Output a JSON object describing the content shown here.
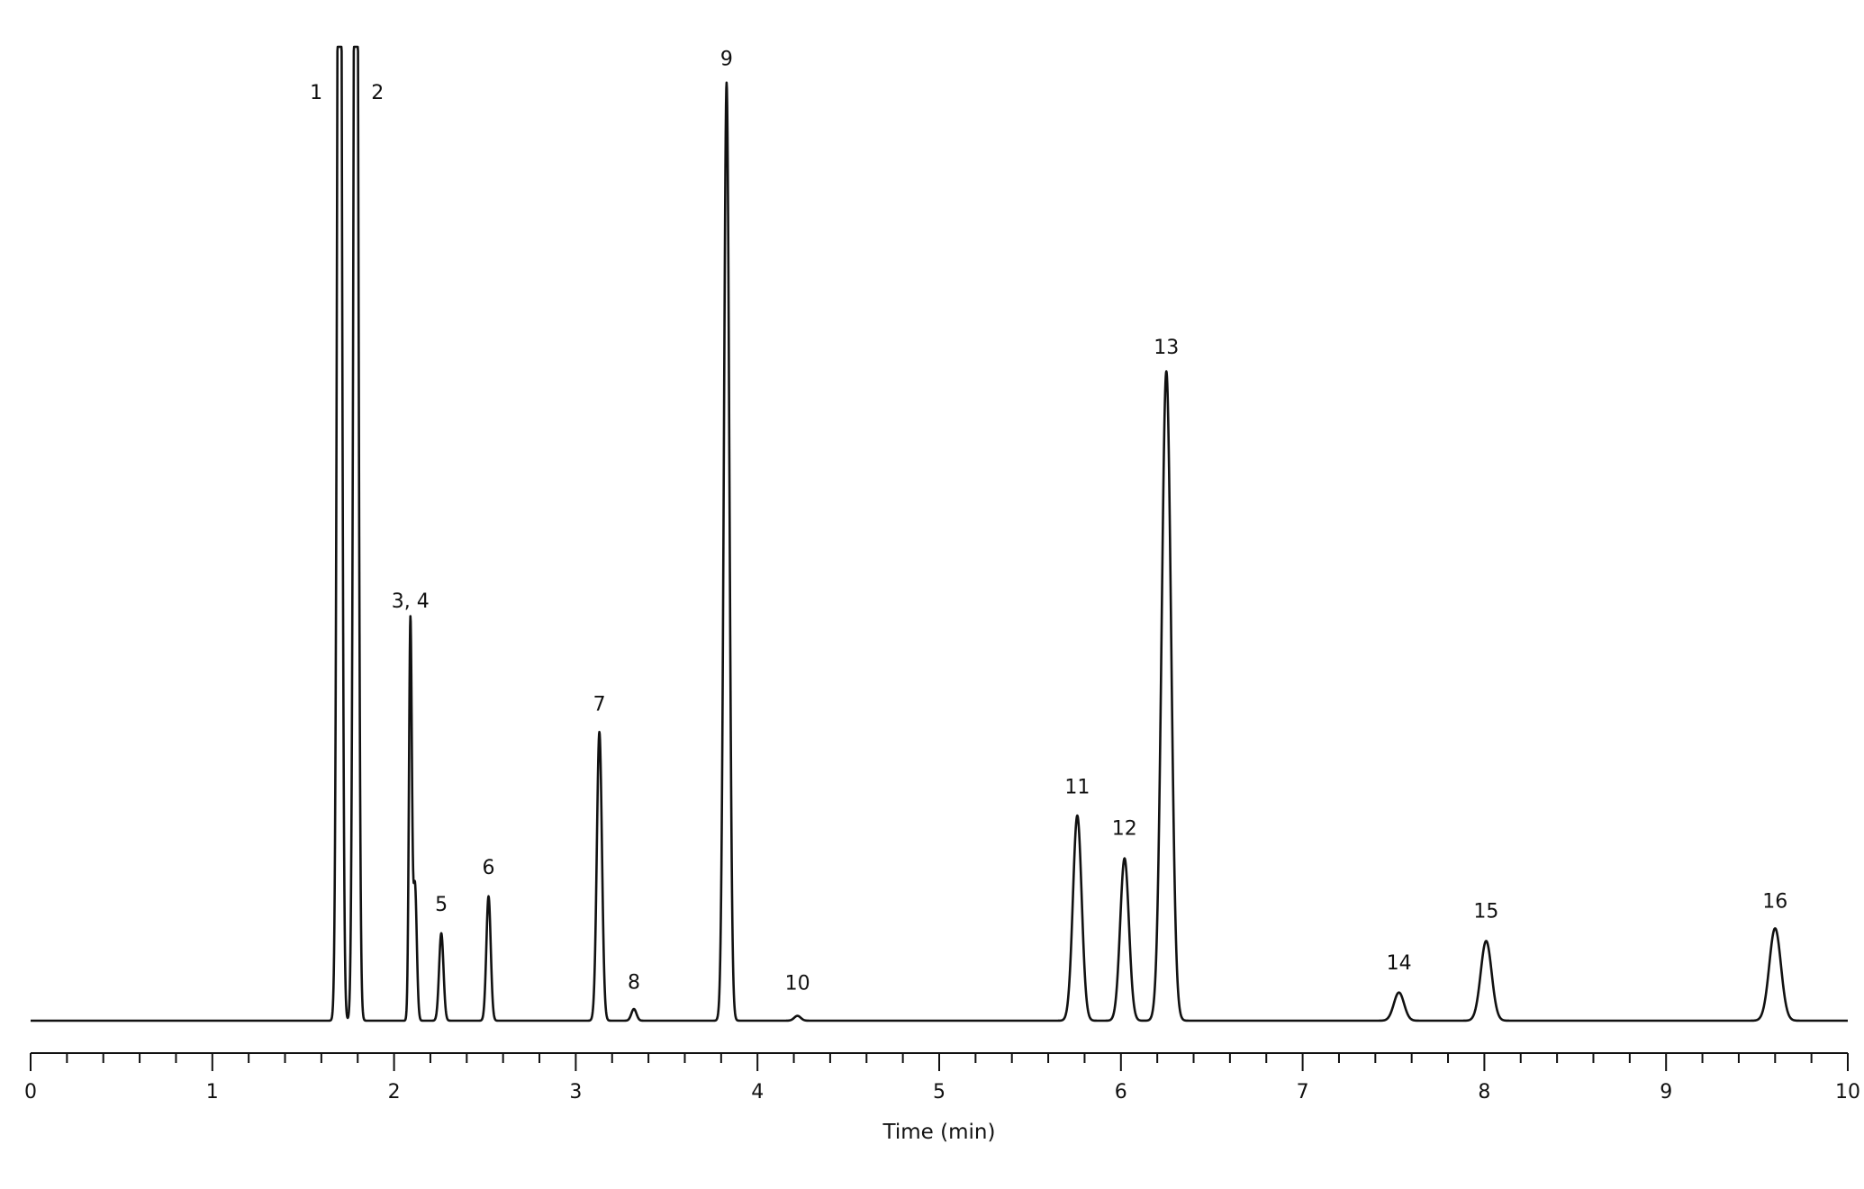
{
  "chart_data": {
    "type": "line",
    "title": "",
    "xlabel": "Time (min)",
    "ylabel": "",
    "xlim": [
      0,
      10
    ],
    "ylim": [
      0,
      100
    ],
    "x_major_ticks": [
      0,
      1,
      2,
      3,
      4,
      5,
      6,
      7,
      8,
      9,
      10
    ],
    "x_minor_step": 0.2,
    "grid": false,
    "legend": "none",
    "line_color": "#111111",
    "peaks": [
      {
        "label": "1",
        "time": 1.7,
        "height": 160,
        "width": 0.012
      },
      {
        "label": "2",
        "time": 1.79,
        "height": 160,
        "width": 0.012
      },
      {
        "label": "3, 4",
        "time": 2.09,
        "height": 41,
        "width": 0.008
      },
      {
        "label": "",
        "time": 2.115,
        "height": 14,
        "width": 0.01
      },
      {
        "label": "5",
        "time": 2.26,
        "height": 9,
        "width": 0.012
      },
      {
        "label": "6",
        "time": 2.52,
        "height": 12.8,
        "width": 0.012
      },
      {
        "label": "7",
        "time": 3.13,
        "height": 29.7,
        "width": 0.014
      },
      {
        "label": "8",
        "time": 3.32,
        "height": 1.2,
        "width": 0.014
      },
      {
        "label": "9",
        "time": 3.83,
        "height": 96.5,
        "width": 0.015
      },
      {
        "label": "10",
        "time": 4.22,
        "height": 0.5,
        "width": 0.018
      },
      {
        "label": "11",
        "time": 5.76,
        "height": 21.1,
        "width": 0.024
      },
      {
        "label": "12",
        "time": 6.02,
        "height": 16.7,
        "width": 0.024
      },
      {
        "label": "13",
        "time": 6.25,
        "height": 66.8,
        "width": 0.026
      },
      {
        "label": "14",
        "time": 7.53,
        "height": 2.9,
        "width": 0.028
      },
      {
        "label": "15",
        "time": 8.01,
        "height": 8.2,
        "width": 0.03
      },
      {
        "label": "16",
        "time": 9.6,
        "height": 9.5,
        "width": 0.032
      }
    ],
    "label_tops": {
      "1": 94.8,
      "2": 94.8,
      "3, 4": 42.5,
      "5": 11.3,
      "6": 15.1,
      "7": 31.9,
      "8": 3.3,
      "9": 98.3,
      "10": 3.2,
      "11": 23.4,
      "12": 19.1,
      "13": 68.6,
      "14": 5.3,
      "15": 10.6,
      "16": 11.6
    }
  }
}
